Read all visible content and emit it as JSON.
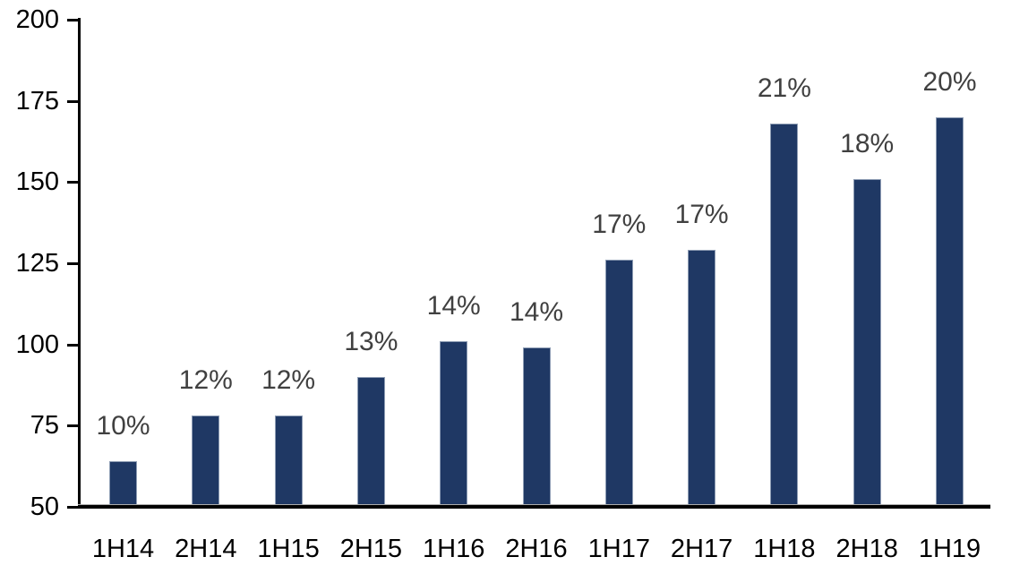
{
  "chart_data": {
    "type": "bar",
    "title": "",
    "xlabel": "",
    "ylabel": "",
    "categories": [
      "1H14",
      "2H14",
      "1H15",
      "2H15",
      "1H16",
      "2H16",
      "1H17",
      "2H17",
      "1H18",
      "2H18",
      "1H19"
    ],
    "values": [
      64,
      78,
      78,
      90,
      101,
      99,
      126,
      129,
      168,
      151,
      170
    ],
    "bar_labels": [
      "10%",
      "12%",
      "12%",
      "13%",
      "14%",
      "14%",
      "17%",
      "17%",
      "21%",
      "18%",
      "20%"
    ],
    "ylim": [
      50,
      200
    ],
    "yticks": [
      50,
      75,
      100,
      125,
      150,
      175,
      200
    ],
    "ytick_labels": [
      "50",
      "75",
      "100",
      "125",
      "150",
      "175",
      "200"
    ],
    "grid": "off",
    "legend_position": "none",
    "colors": {
      "bar_fill": "#1F3864",
      "bar_border": "#8E9DB4",
      "bar_label_text": "#404040",
      "axis_text": "#000000",
      "axis_line": "#000000",
      "background": "#ffffff"
    }
  }
}
